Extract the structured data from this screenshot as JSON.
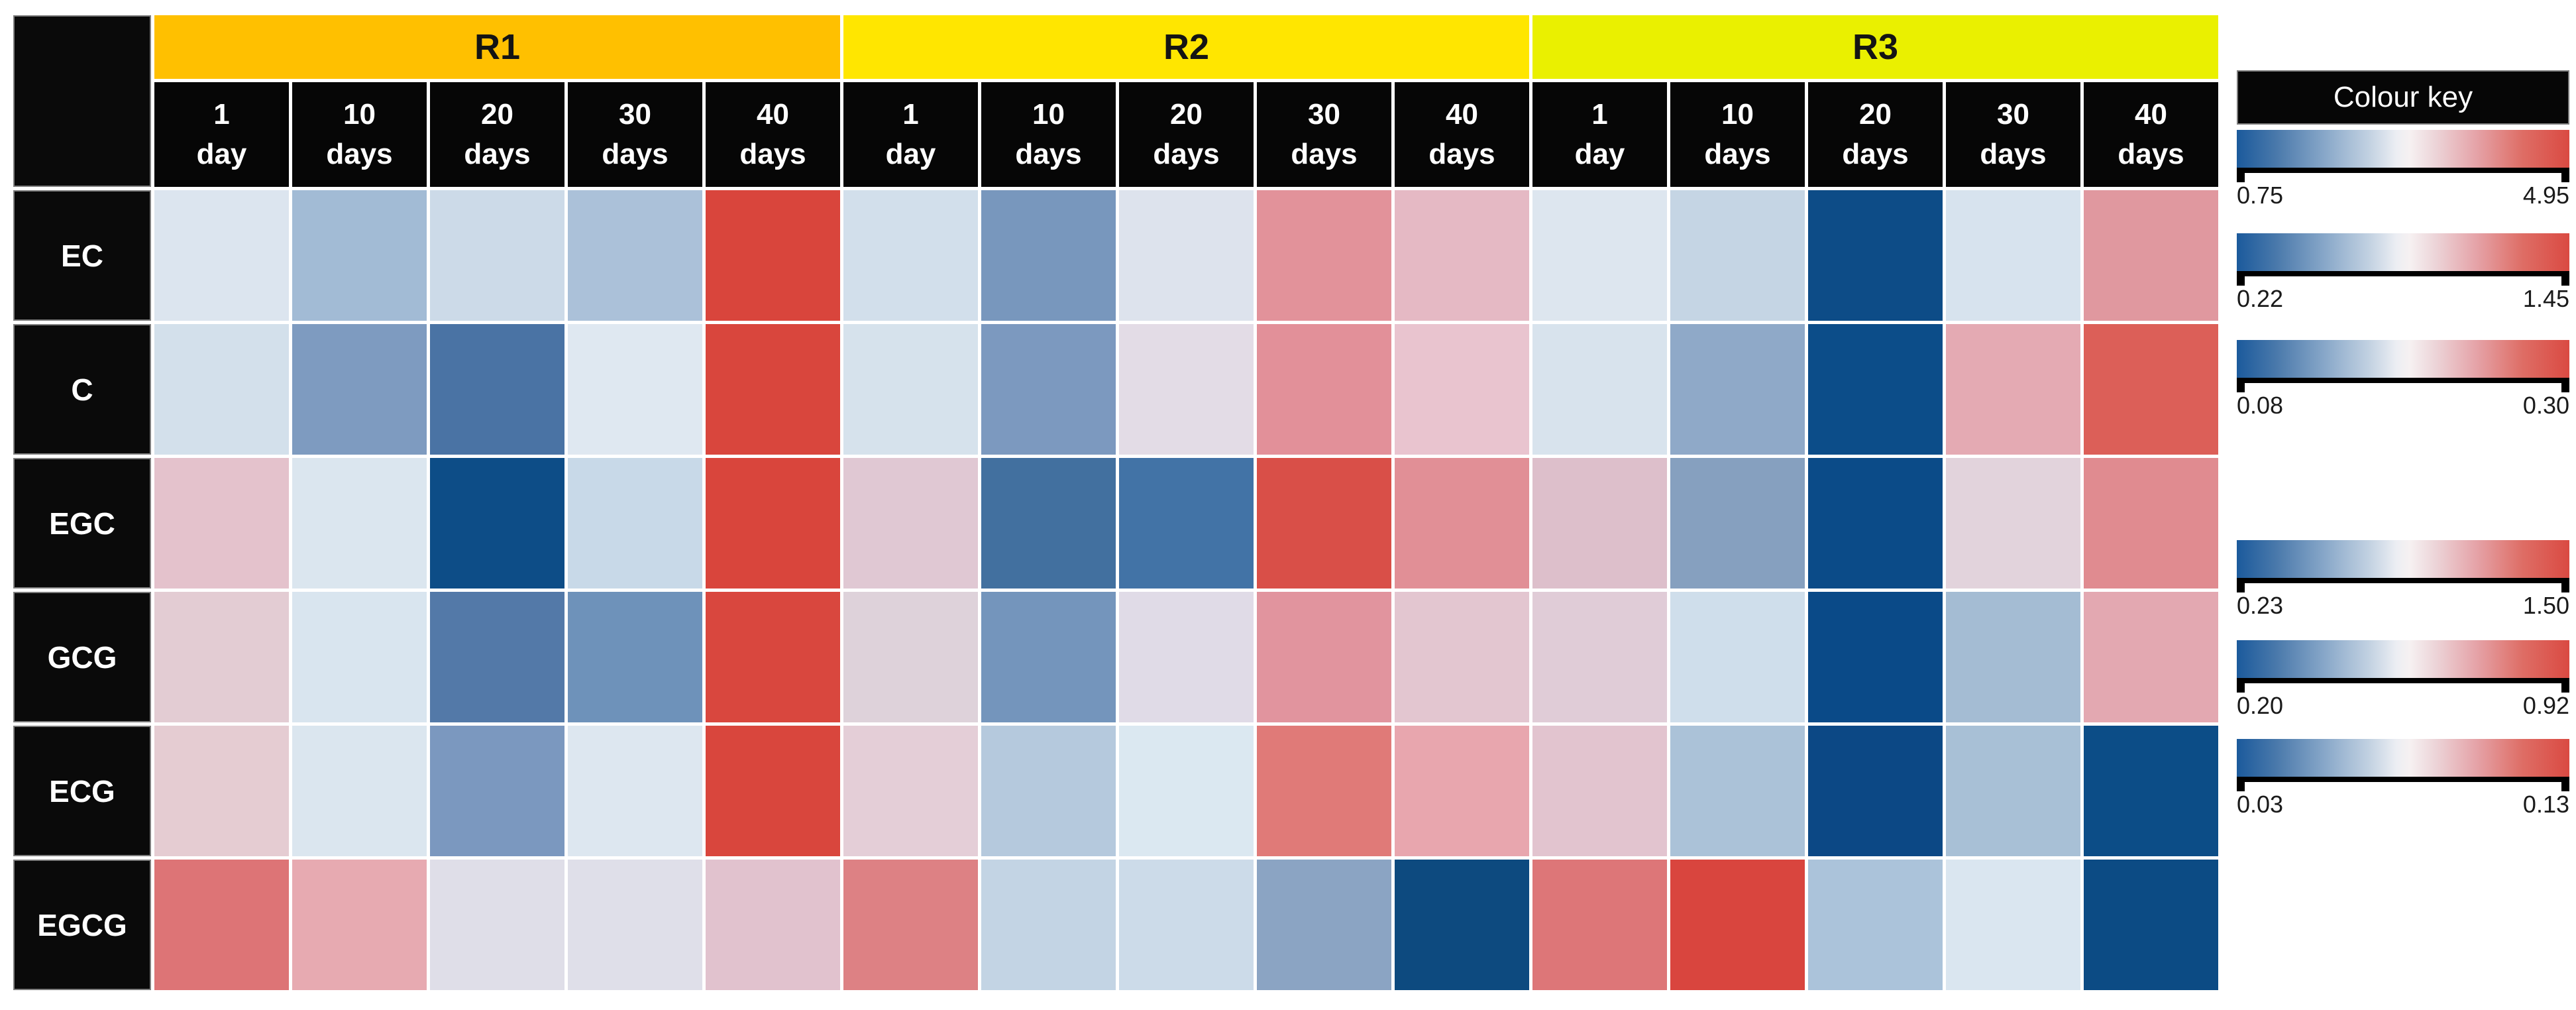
{
  "chart_data": {
    "type": "heatmap",
    "column_groups": [
      {
        "label": "R1",
        "color": "#FFC000"
      },
      {
        "label": "R2",
        "color": "#FFE600"
      },
      {
        "label": "R3",
        "color": "#EAF000"
      }
    ],
    "day_columns_per_group": [
      {
        "num": "1",
        "unit": "day"
      },
      {
        "num": "10",
        "unit": "days"
      },
      {
        "num": "20",
        "unit": "days"
      },
      {
        "num": "30",
        "unit": "days"
      },
      {
        "num": "40",
        "unit": "days"
      }
    ],
    "rows": [
      {
        "label": "EC",
        "cell_colors": [
          "#DCE5EF",
          "#A2BBD5",
          "#CCDAE8",
          "#ABC1D9",
          "#D9453C",
          "#D2DFEB",
          "#7897BD",
          "#DDE3ED",
          "#E2929A",
          "#E5B9C4",
          "#DDE6EF",
          "#C5D5E4",
          "#0D4C87",
          "#D7E3EE",
          "#E0989F"
        ]
      },
      {
        "label": "C",
        "cell_colors": [
          "#D3E0EB",
          "#7E9BC0",
          "#4A73A4",
          "#DFE8F1",
          "#D9463D",
          "#D6E2EC",
          "#7C99BF",
          "#E3DCE6",
          "#E29099",
          "#E9C4CF",
          "#D8E3ED",
          "#8FA9C8",
          "#0C4D89",
          "#E4AAB3",
          "#DC5F58"
        ]
      },
      {
        "label": "EGC",
        "cell_colors": [
          "#E4C2CC",
          "#DBE6EF",
          "#0D4D87",
          "#C8D9E8",
          "#D9453C",
          "#E0C8D3",
          "#42709F",
          "#4273A6",
          "#D94F48",
          "#E18F96",
          "#DDBFCB",
          "#86A0BF",
          "#0B4B88",
          "#E2D3DC",
          "#E08B90"
        ]
      },
      {
        "label": "GCG",
        "cell_colors": [
          "#E3CCD3",
          "#D9E5EF",
          "#5379A8",
          "#6E92BA",
          "#D9473E",
          "#DED2DA",
          "#7495BC",
          "#E0DBE7",
          "#E1949E",
          "#E3C6D0",
          "#E0CCD7",
          "#CFDEEB",
          "#0A4A88",
          "#A4BCD3",
          "#E3A8B1"
        ]
      },
      {
        "label": "ECG",
        "cell_colors": [
          "#E5CCD2",
          "#DBE6EF",
          "#7B98BF",
          "#DDE7F0",
          "#D9463D",
          "#E4CED7",
          "#B5C9DD",
          "#DBE8F1",
          "#E07A78",
          "#E8A6AE",
          "#E2C4CF",
          "#ABC2D8",
          "#0C4885",
          "#A8C0D6",
          "#0C4D87"
        ]
      },
      {
        "label": "EGCG",
        "cell_colors": [
          "#DD7476",
          "#E7AAB1",
          "#DFDEE8",
          "#DFDFE9",
          "#E1C2CE",
          "#DD8184",
          "#C3D4E4",
          "#CCDBE9",
          "#8BA4C3",
          "#0D4A7F",
          "#DD7678",
          "#D9453E",
          "#ABC3DA",
          "#DAE6F0",
          "#0C4B84"
        ]
      }
    ],
    "colour_key": {
      "title": "Colour key",
      "gradient": {
        "low": "#1B5A9C",
        "mid": "#F6F1F2",
        "high": "#DA4A42"
      },
      "entries": [
        {
          "row": "EC",
          "min": "0.75",
          "max": "4.95"
        },
        {
          "row": "C",
          "min": "0.22",
          "max": "1.45"
        },
        {
          "row": "EGC",
          "min": "0.08",
          "max": "0.30"
        },
        {
          "row": "GCG",
          "min": "0.23",
          "max": "1.50"
        },
        {
          "row": "ECG",
          "min": "0.20",
          "max": "0.92"
        },
        {
          "row": "EGCG",
          "min": "0.03",
          "max": "0.13"
        }
      ]
    }
  }
}
